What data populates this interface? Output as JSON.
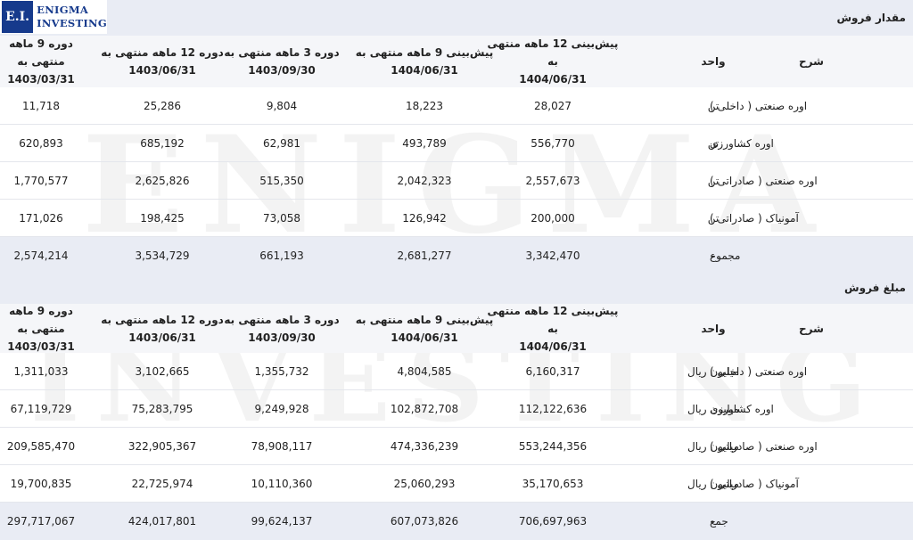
{
  "logo": {
    "mark": "E.I.",
    "line1": "ENIGMA",
    "line2": "INVESTING"
  },
  "watermark": {
    "line1": "ENIGMA",
    "line2": "INVESTING"
  },
  "sections": [
    {
      "title": "مقدار فروش",
      "columns": [
        {
          "l1": "شرح",
          "l2": ""
        },
        {
          "l1": "واحد",
          "l2": ""
        },
        {
          "l1": "پیش‌بینی 12 ماهه منتهی به",
          "l2": "1404/06/31"
        },
        {
          "l1": "پیش‌بینی 9 ماهه منتهی به",
          "l2": "1404/06/31"
        },
        {
          "l1": "دوره 3 ماهه منتهی به",
          "l2": "1403/09/30"
        },
        {
          "l1": "دوره 12 ماهه منتهی به",
          "l2": "1403/06/31"
        },
        {
          "l1": "دوره 9 ماهه منتهی به",
          "l2": "1403/03/31"
        }
      ],
      "rows": [
        {
          "label": "اوره صنعتی ( داخلی )",
          "unit": "تن",
          "values": [
            "28,027",
            "18,223",
            "9,804",
            "25,286",
            "11,718"
          ]
        },
        {
          "label": "اوره کشاورزی",
          "unit": "تن",
          "values": [
            "556,770",
            "493,789",
            "62,981",
            "685,192",
            "620,893"
          ]
        },
        {
          "label": "اوره صنعتی ( صادراتی )",
          "unit": "تن",
          "values": [
            "2,557,673",
            "2,042,323",
            "515,350",
            "2,625,826",
            "1,770,577"
          ]
        },
        {
          "label": "آمونیاک ( صادراتی )",
          "unit": "تن",
          "values": [
            "200,000",
            "126,942",
            "73,058",
            "198,425",
            "171,026"
          ]
        }
      ],
      "total": {
        "label": "مجموع",
        "unit": "-",
        "values": [
          "3,342,470",
          "2,681,277",
          "661,193",
          "3,534,729",
          "2,574,214"
        ]
      }
    },
    {
      "title": "مبلغ فروش",
      "columns": [
        {
          "l1": "شرح",
          "l2": ""
        },
        {
          "l1": "واحد",
          "l2": ""
        },
        {
          "l1": "پیش‌بینی 12 ماهه منتهی به",
          "l2": "1404/06/31"
        },
        {
          "l1": "پیش‌بینی 9 ماهه منتهی به",
          "l2": "1404/06/31"
        },
        {
          "l1": "دوره 3 ماهه منتهی به",
          "l2": "1403/09/30"
        },
        {
          "l1": "دوره 12 ماهه منتهی به",
          "l2": "1403/06/31"
        },
        {
          "l1": "دوره 9 ماهه منتهی به",
          "l2": "1403/03/31"
        }
      ],
      "rows": [
        {
          "label": "اوره صنعتی ( داخلی )",
          "unit": "میلیون ریال",
          "values": [
            "6,160,317",
            "4,804,585",
            "1,355,732",
            "3,102,665",
            "1,311,033"
          ]
        },
        {
          "label": "اوره کشاورزی",
          "unit": "میلیون ریال",
          "values": [
            "112,122,636",
            "102,872,708",
            "9,249,928",
            "75,283,795",
            "67,119,729"
          ]
        },
        {
          "label": "اوره صنعتی ( صادراتی )",
          "unit": "میلیون ریال",
          "values": [
            "553,244,356",
            "474,336,239",
            "78,908,117",
            "322,905,367",
            "209,585,470"
          ]
        },
        {
          "label": "آمونیاک ( صادراتی )",
          "unit": "میلیون ریال",
          "values": [
            "35,170,653",
            "25,060,293",
            "10,110,360",
            "22,725,974",
            "19,700,835"
          ]
        }
      ],
      "total": {
        "label": "جمع",
        "unit": "-",
        "values": [
          "706,697,963",
          "607,073,826",
          "99,624,137",
          "424,017,801",
          "297,717,067"
        ]
      }
    }
  ]
}
